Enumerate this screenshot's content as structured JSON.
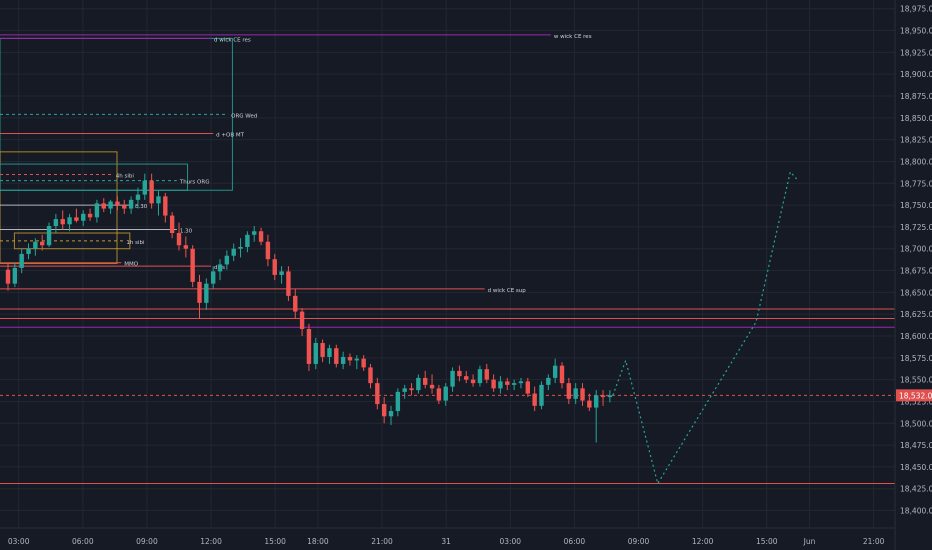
{
  "chart_data": {
    "type": "candlestick",
    "ylim": [
      18380,
      18985
    ],
    "xlim": [
      0,
      41.5
    ],
    "grid": true,
    "y_ticks": [
      "18,975.00",
      "18,950.00",
      "18,925.00",
      "18,900.00",
      "18,875.00",
      "18,850.00",
      "18,825.00",
      "18,800.00",
      "18,775.00",
      "18,750.00",
      "18,725.00",
      "18,700.00",
      "18,675.00",
      "18,650.00",
      "18,625.00",
      "18,600.00",
      "18,575.00",
      "18,550.00",
      "18,525.00",
      "18,500.00",
      "18,475.00",
      "18,450.00",
      "18,425.00",
      "18,400.00"
    ],
    "x_ticks": [
      {
        "label": "03:00",
        "t": 0.5
      },
      {
        "label": "06:00",
        "t": 3.5
      },
      {
        "label": "09:00",
        "t": 6.5
      },
      {
        "label": "12:00",
        "t": 9.5
      },
      {
        "label": "15:00",
        "t": 12.5
      },
      {
        "label": "18:00",
        "t": 14.5
      },
      {
        "label": "21:00",
        "t": 17.5
      },
      {
        "label": "31",
        "t": 20.5
      },
      {
        "label": "03:00",
        "t": 23.5
      },
      {
        "label": "06:00",
        "t": 26.5
      },
      {
        "label": "09:00",
        "t": 29.5
      },
      {
        "label": "12:00",
        "t": 32.5
      },
      {
        "label": "15:00",
        "t": 35.5
      },
      {
        "label": "Jun",
        "t": 37.5
      },
      {
        "label": "21:00",
        "t": 40.5
      }
    ],
    "last_price": "18,532.00",
    "colors": {
      "up": "#26a69a",
      "down": "#ef5350",
      "bg": "#161a25",
      "text": "#b2b5be",
      "level": "#e0504f",
      "purple": "#9c27b0",
      "teal": "#26a69a",
      "gold": "#c79a2a",
      "projection": "#26a69a",
      "grid": "#232733"
    },
    "candles": [
      {
        "t": 0.0,
        "o": 18676,
        "h": 18684,
        "l": 18652,
        "c": 18660
      },
      {
        "t": 0.32,
        "o": 18660,
        "h": 18684,
        "l": 18656,
        "c": 18678
      },
      {
        "t": 0.64,
        "o": 18678,
        "h": 18700,
        "l": 18672,
        "c": 18694
      },
      {
        "t": 0.96,
        "o": 18694,
        "h": 18706,
        "l": 18688,
        "c": 18700
      },
      {
        "t": 1.28,
        "o": 18700,
        "h": 18712,
        "l": 18692,
        "c": 18708
      },
      {
        "t": 1.6,
        "o": 18708,
        "h": 18716,
        "l": 18698,
        "c": 18704
      },
      {
        "t": 1.92,
        "o": 18704,
        "h": 18730,
        "l": 18702,
        "c": 18726
      },
      {
        "t": 2.24,
        "o": 18726,
        "h": 18740,
        "l": 18718,
        "c": 18734
      },
      {
        "t": 2.56,
        "o": 18734,
        "h": 18744,
        "l": 18722,
        "c": 18728
      },
      {
        "t": 2.88,
        "o": 18728,
        "h": 18740,
        "l": 18720,
        "c": 18736
      },
      {
        "t": 3.2,
        "o": 18736,
        "h": 18746,
        "l": 18730,
        "c": 18732
      },
      {
        "t": 3.52,
        "o": 18732,
        "h": 18744,
        "l": 18726,
        "c": 18740
      },
      {
        "t": 3.84,
        "o": 18740,
        "h": 18746,
        "l": 18732,
        "c": 18736
      },
      {
        "t": 4.16,
        "o": 18736,
        "h": 18756,
        "l": 18730,
        "c": 18752
      },
      {
        "t": 4.48,
        "o": 18752,
        "h": 18758,
        "l": 18742,
        "c": 18746
      },
      {
        "t": 4.8,
        "o": 18746,
        "h": 18756,
        "l": 18740,
        "c": 18754
      },
      {
        "t": 5.12,
        "o": 18754,
        "h": 18760,
        "l": 18744,
        "c": 18750
      },
      {
        "t": 5.44,
        "o": 18750,
        "h": 18756,
        "l": 18740,
        "c": 18746
      },
      {
        "t": 5.76,
        "o": 18746,
        "h": 18760,
        "l": 18740,
        "c": 18756
      },
      {
        "t": 6.08,
        "o": 18756,
        "h": 18770,
        "l": 18746,
        "c": 18762
      },
      {
        "t": 6.4,
        "o": 18762,
        "h": 18786,
        "l": 18756,
        "c": 18778
      },
      {
        "t": 6.72,
        "o": 18778,
        "h": 18786,
        "l": 18746,
        "c": 18752
      },
      {
        "t": 7.04,
        "o": 18752,
        "h": 18766,
        "l": 18738,
        "c": 18760
      },
      {
        "t": 7.36,
        "o": 18760,
        "h": 18764,
        "l": 18730,
        "c": 18738
      },
      {
        "t": 7.68,
        "o": 18738,
        "h": 18742,
        "l": 18712,
        "c": 18718
      },
      {
        "t": 8.0,
        "o": 18718,
        "h": 18730,
        "l": 18698,
        "c": 18704
      },
      {
        "t": 8.32,
        "o": 18704,
        "h": 18714,
        "l": 18690,
        "c": 18700
      },
      {
        "t": 8.64,
        "o": 18700,
        "h": 18704,
        "l": 18656,
        "c": 18662
      },
      {
        "t": 8.96,
        "o": 18662,
        "h": 18670,
        "l": 18620,
        "c": 18638
      },
      {
        "t": 9.28,
        "o": 18638,
        "h": 18666,
        "l": 18630,
        "c": 18660
      },
      {
        "t": 9.6,
        "o": 18660,
        "h": 18680,
        "l": 18654,
        "c": 18674
      },
      {
        "t": 9.92,
        "o": 18674,
        "h": 18688,
        "l": 18664,
        "c": 18682
      },
      {
        "t": 10.24,
        "o": 18682,
        "h": 18698,
        "l": 18676,
        "c": 18692
      },
      {
        "t": 10.56,
        "o": 18692,
        "h": 18706,
        "l": 18686,
        "c": 18700
      },
      {
        "t": 10.88,
        "o": 18700,
        "h": 18712,
        "l": 18690,
        "c": 18702
      },
      {
        "t": 11.2,
        "o": 18702,
        "h": 18720,
        "l": 18696,
        "c": 18716
      },
      {
        "t": 11.52,
        "o": 18716,
        "h": 18726,
        "l": 18708,
        "c": 18720
      },
      {
        "t": 11.84,
        "o": 18720,
        "h": 18724,
        "l": 18704,
        "c": 18708
      },
      {
        "t": 12.16,
        "o": 18708,
        "h": 18716,
        "l": 18680,
        "c": 18688
      },
      {
        "t": 12.48,
        "o": 18688,
        "h": 18694,
        "l": 18664,
        "c": 18670
      },
      {
        "t": 12.8,
        "o": 18670,
        "h": 18680,
        "l": 18660,
        "c": 18674
      },
      {
        "t": 13.12,
        "o": 18674,
        "h": 18680,
        "l": 18640,
        "c": 18646
      },
      {
        "t": 13.44,
        "o": 18646,
        "h": 18654,
        "l": 18620,
        "c": 18628
      },
      {
        "t": 13.76,
        "o": 18628,
        "h": 18632,
        "l": 18600,
        "c": 18608
      },
      {
        "t": 14.08,
        "o": 18608,
        "h": 18614,
        "l": 18560,
        "c": 18568
      },
      {
        "t": 14.4,
        "o": 18568,
        "h": 18598,
        "l": 18562,
        "c": 18592
      },
      {
        "t": 14.72,
        "o": 18592,
        "h": 18596,
        "l": 18570,
        "c": 18576
      },
      {
        "t": 15.04,
        "o": 18576,
        "h": 18590,
        "l": 18568,
        "c": 18586
      },
      {
        "t": 15.36,
        "o": 18586,
        "h": 18590,
        "l": 18564,
        "c": 18568
      },
      {
        "t": 15.68,
        "o": 18568,
        "h": 18582,
        "l": 18562,
        "c": 18576
      },
      {
        "t": 16.0,
        "o": 18576,
        "h": 18580,
        "l": 18566,
        "c": 18572
      },
      {
        "t": 16.32,
        "o": 18572,
        "h": 18578,
        "l": 18562,
        "c": 18574
      },
      {
        "t": 16.64,
        "o": 18574,
        "h": 18578,
        "l": 18560,
        "c": 18564
      },
      {
        "t": 16.96,
        "o": 18564,
        "h": 18568,
        "l": 18540,
        "c": 18546
      },
      {
        "t": 17.28,
        "o": 18546,
        "h": 18552,
        "l": 18516,
        "c": 18522
      },
      {
        "t": 17.6,
        "o": 18522,
        "h": 18530,
        "l": 18500,
        "c": 18508
      },
      {
        "t": 17.92,
        "o": 18508,
        "h": 18520,
        "l": 18498,
        "c": 18514
      },
      {
        "t": 18.24,
        "o": 18514,
        "h": 18540,
        "l": 18508,
        "c": 18536
      },
      {
        "t": 18.56,
        "o": 18536,
        "h": 18544,
        "l": 18528,
        "c": 18540
      },
      {
        "t": 18.88,
        "o": 18540,
        "h": 18546,
        "l": 18532,
        "c": 18538
      },
      {
        "t": 19.2,
        "o": 18538,
        "h": 18556,
        "l": 18534,
        "c": 18552
      },
      {
        "t": 19.52,
        "o": 18552,
        "h": 18560,
        "l": 18540,
        "c": 18544
      },
      {
        "t": 19.84,
        "o": 18544,
        "h": 18556,
        "l": 18534,
        "c": 18540
      },
      {
        "t": 20.16,
        "o": 18540,
        "h": 18544,
        "l": 18522,
        "c": 18526
      },
      {
        "t": 20.48,
        "o": 18526,
        "h": 18546,
        "l": 18520,
        "c": 18542
      },
      {
        "t": 20.8,
        "o": 18542,
        "h": 18564,
        "l": 18536,
        "c": 18560
      },
      {
        "t": 21.12,
        "o": 18560,
        "h": 18566,
        "l": 18548,
        "c": 18554
      },
      {
        "t": 21.44,
        "o": 18554,
        "h": 18560,
        "l": 18546,
        "c": 18550
      },
      {
        "t": 21.76,
        "o": 18550,
        "h": 18556,
        "l": 18542,
        "c": 18546
      },
      {
        "t": 22.08,
        "o": 18546,
        "h": 18566,
        "l": 18542,
        "c": 18562
      },
      {
        "t": 22.4,
        "o": 18562,
        "h": 18568,
        "l": 18546,
        "c": 18550
      },
      {
        "t": 22.72,
        "o": 18550,
        "h": 18556,
        "l": 18536,
        "c": 18540
      },
      {
        "t": 23.04,
        "o": 18540,
        "h": 18554,
        "l": 18534,
        "c": 18548
      },
      {
        "t": 23.36,
        "o": 18548,
        "h": 18552,
        "l": 18538,
        "c": 18544
      },
      {
        "t": 23.68,
        "o": 18544,
        "h": 18550,
        "l": 18538,
        "c": 18546
      },
      {
        "t": 24.0,
        "o": 18546,
        "h": 18552,
        "l": 18540,
        "c": 18548
      },
      {
        "t": 24.32,
        "o": 18548,
        "h": 18552,
        "l": 18530,
        "c": 18534
      },
      {
        "t": 24.64,
        "o": 18534,
        "h": 18542,
        "l": 18514,
        "c": 18520
      },
      {
        "t": 24.96,
        "o": 18520,
        "h": 18548,
        "l": 18516,
        "c": 18544
      },
      {
        "t": 25.28,
        "o": 18544,
        "h": 18556,
        "l": 18538,
        "c": 18552
      },
      {
        "t": 25.6,
        "o": 18552,
        "h": 18574,
        "l": 18546,
        "c": 18566
      },
      {
        "t": 25.92,
        "o": 18566,
        "h": 18570,
        "l": 18540,
        "c": 18546
      },
      {
        "t": 26.24,
        "o": 18546,
        "h": 18552,
        "l": 18522,
        "c": 18528
      },
      {
        "t": 26.56,
        "o": 18528,
        "h": 18546,
        "l": 18522,
        "c": 18540
      },
      {
        "t": 26.88,
        "o": 18540,
        "h": 18546,
        "l": 18520,
        "c": 18526
      },
      {
        "t": 27.2,
        "o": 18526,
        "h": 18534,
        "l": 18514,
        "c": 18518
      },
      {
        "t": 27.52,
        "o": 18518,
        "h": 18538,
        "l": 18478,
        "c": 18532
      },
      {
        "t": 27.84,
        "o": 18532,
        "h": 18538,
        "l": 18520,
        "c": 18530
      },
      {
        "t": 28.16,
        "o": 18530,
        "h": 18538,
        "l": 18524,
        "c": 18532
      }
    ],
    "levels": [
      {
        "label": "w wick CE res",
        "y": 18945,
        "x_end": 25.4,
        "color": "purple",
        "style": "solid"
      },
      {
        "label": "d wick CE res",
        "y": 18941,
        "x_end": 9.5,
        "color": "purple",
        "style": "solid"
      },
      {
        "label": "ORG Wed",
        "y": 18854,
        "x_end": 10.3,
        "color": "teal",
        "style": "dashed"
      },
      {
        "label": "d +OB MT",
        "y": 18832,
        "x_end": 9.6,
        "color": "level",
        "style": "solid"
      },
      {
        "label": "4h sibi",
        "y": 18785,
        "x_end": 4.9,
        "color": "level",
        "style": "dashed"
      },
      {
        "label": "Thurs ORG",
        "y": 18778,
        "x_end": 7.9,
        "color": "teal",
        "style": "dashed"
      },
      {
        "label": "8.30",
        "y": 18750,
        "x_end": 5.8,
        "color": "text",
        "style": "solid"
      },
      {
        "label": "1.30",
        "y": 18722,
        "x_end": 7.9,
        "color": "text",
        "style": "solid"
      },
      {
        "label": "1h sibi",
        "y": 18709,
        "x_end": 5.4,
        "color": "gold",
        "style": "dashed"
      },
      {
        "label": "MMO",
        "y": 18684,
        "x_end": 5.3,
        "color": "level",
        "style": "solid"
      },
      {
        "label": "d ss",
        "y": 18680,
        "x_end": 9.5,
        "color": "level",
        "style": "solid"
      },
      {
        "label": "d wick CE sup",
        "y": 18654,
        "x_end": 22.3,
        "color": "level",
        "style": "solid"
      },
      {
        "label": "",
        "y": 18631,
        "x_end": 41.5,
        "color": "level",
        "style": "solid"
      },
      {
        "label": "",
        "y": 18620,
        "x_end": 41.5,
        "color": "level",
        "style": "solid"
      },
      {
        "label": "",
        "y": 18610,
        "x_end": 41.5,
        "color": "purple",
        "style": "solid"
      },
      {
        "label": "",
        "y": 18532,
        "x_end": 41.5,
        "color": "level",
        "style": "dashed"
      },
      {
        "label": "",
        "y": 18431,
        "x_end": 41.5,
        "color": "level",
        "style": "solid"
      }
    ],
    "zones": [
      {
        "x0": -0.5,
        "x1": 10.5,
        "y_top": 18941,
        "y_bot": 18767,
        "color": "teal"
      },
      {
        "x0": -0.5,
        "x1": 5.1,
        "y_top": 18811,
        "y_bot": 18683,
        "color": "gold"
      },
      {
        "x0": -0.5,
        "x1": 8.4,
        "y_top": 18797,
        "y_bot": 18767,
        "color": "teal"
      },
      {
        "x0": 0.3,
        "x1": 5.7,
        "y_top": 18718,
        "y_bot": 18700,
        "color": "gold"
      }
    ],
    "projection": [
      {
        "t": 28.3,
        "p": 18532
      },
      {
        "t": 28.9,
        "p": 18572
      },
      {
        "t": 30.4,
        "p": 18431
      },
      {
        "t": 35.0,
        "p": 18616
      },
      {
        "t": 36.6,
        "p": 18788
      },
      {
        "t": 36.9,
        "p": 18780
      }
    ]
  }
}
